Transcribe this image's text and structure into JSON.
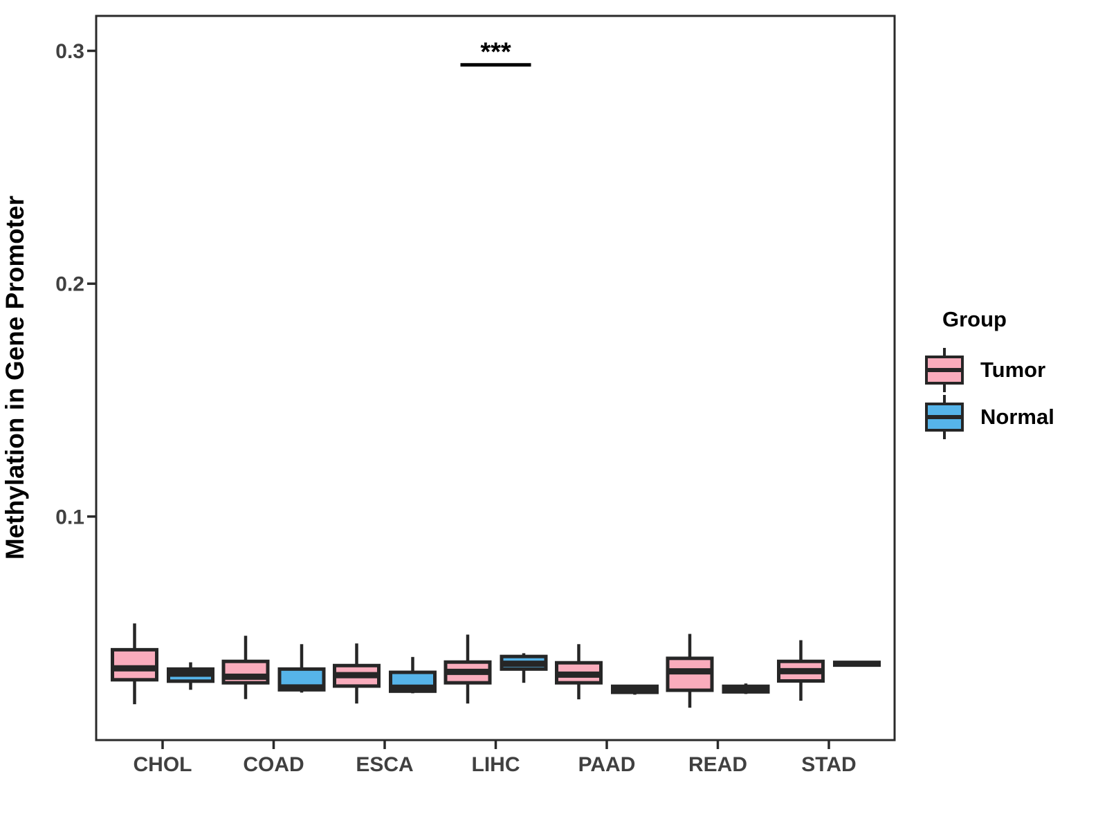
{
  "colors": {
    "tumor_fill": "#F9ACBC",
    "normal_fill": "#56B4E9",
    "box_stroke": "#262626",
    "panel_border": "#2A2A2A",
    "axis_text": "#404040",
    "title_text": "#000000"
  },
  "legend": {
    "title": "Group",
    "entries": [
      {
        "label": "Tumor",
        "color": "#F9ACBC"
      },
      {
        "label": "Normal",
        "color": "#56B4E9"
      }
    ]
  },
  "chart_data": {
    "type": "boxplot",
    "title": "",
    "xlabel": "",
    "ylabel": "Methylation in Gene Promoter",
    "legend_title": "Group",
    "legend_position": "right",
    "grid": false,
    "categories": [
      "CHOL",
      "COAD",
      "ESCA",
      "LIHC",
      "PAAD",
      "READ",
      "STAD"
    ],
    "y_ticks": [
      0.1,
      0.2,
      0.3
    ],
    "y_tick_labels": [
      "0.1",
      "0.2",
      "0.3"
    ],
    "ylim": [
      0.004,
      0.315
    ],
    "series": [
      {
        "name": "Tumor",
        "color": "#F9ACBC",
        "boxes": [
          {
            "whisker_low": 0.0194,
            "q1": 0.0299,
            "median": 0.0348,
            "q3": 0.0428,
            "whisker_high": 0.0541
          },
          {
            "whisker_low": 0.0216,
            "q1": 0.0286,
            "median": 0.0312,
            "q3": 0.0378,
            "whisker_high": 0.0488
          },
          {
            "whisker_low": 0.0197,
            "q1": 0.0272,
            "median": 0.0319,
            "q3": 0.036,
            "whisker_high": 0.0455
          },
          {
            "whisker_low": 0.0197,
            "q1": 0.0286,
            "median": 0.0333,
            "q3": 0.0375,
            "whisker_high": 0.0493
          },
          {
            "whisker_low": 0.0215,
            "q1": 0.0286,
            "median": 0.0321,
            "q3": 0.0372,
            "whisker_high": 0.0452
          },
          {
            "whisker_low": 0.0179,
            "q1": 0.0254,
            "median": 0.0335,
            "q3": 0.0391,
            "whisker_high": 0.0496
          },
          {
            "whisker_low": 0.0209,
            "q1": 0.0294,
            "median": 0.0336,
            "q3": 0.0378,
            "whisker_high": 0.0469
          }
        ]
      },
      {
        "name": "Normal",
        "color": "#56B4E9",
        "boxes": [
          {
            "whisker_low": 0.0256,
            "q1": 0.0293,
            "median": 0.0325,
            "q3": 0.0345,
            "whisker_high": 0.0374
          },
          {
            "whisker_low": 0.0244,
            "q1": 0.0256,
            "median": 0.0266,
            "q3": 0.0345,
            "whisker_high": 0.0452
          },
          {
            "whisker_low": 0.0241,
            "q1": 0.025,
            "median": 0.0265,
            "q3": 0.0331,
            "whisker_high": 0.0397
          },
          {
            "whisker_low": 0.0286,
            "q1": 0.0345,
            "median": 0.0368,
            "q3": 0.0399,
            "whisker_high": 0.0413
          },
          {
            "whisker_low": 0.0235,
            "q1": 0.0245,
            "median": 0.0258,
            "q3": 0.0271,
            "whisker_high": 0.0275
          },
          {
            "whisker_low": 0.0238,
            "q1": 0.0247,
            "median": 0.0258,
            "q3": 0.0271,
            "whisker_high": 0.0283
          },
          {
            "whisker_low": 0.0362,
            "q1": 0.0365,
            "median": 0.0368,
            "q3": 0.0371,
            "whisker_high": 0.0374
          }
        ]
      }
    ],
    "significance": [
      {
        "category": "LIHC",
        "label": "***",
        "bar_value": 0.294
      }
    ]
  }
}
